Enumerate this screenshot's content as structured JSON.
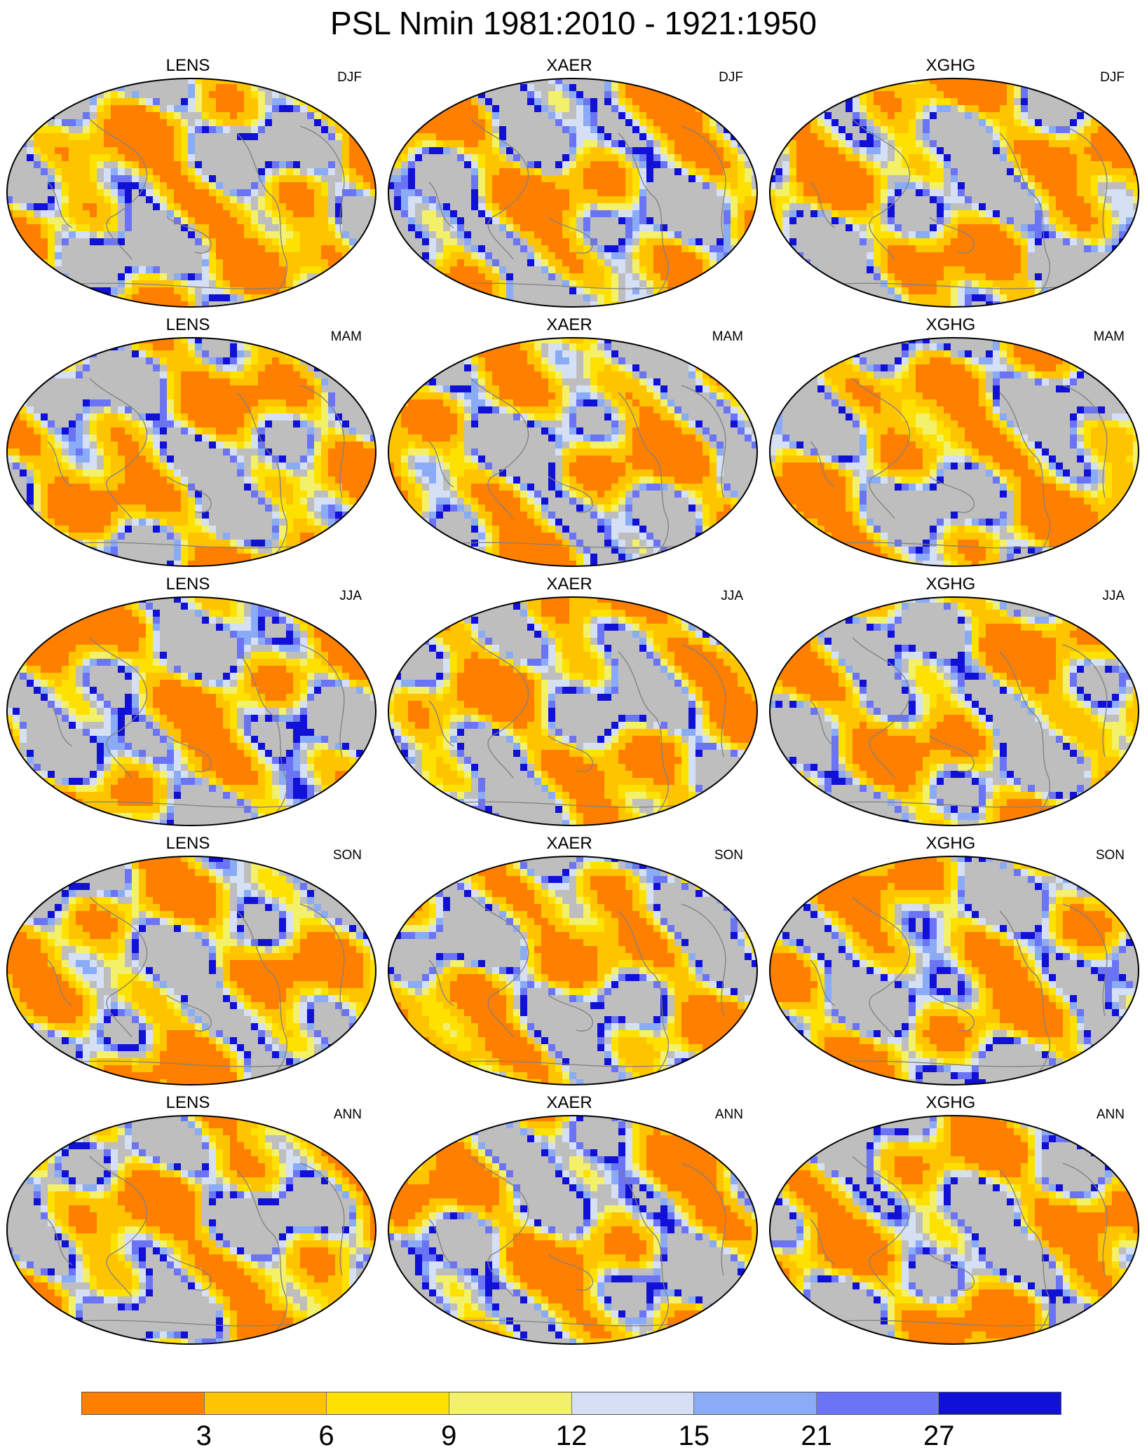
{
  "title": "PSL Nmin 1981:2010 - 1921:1950",
  "column_titles": [
    "LENS",
    "XAER",
    "XGHG"
  ],
  "row_seasons": [
    "DJF",
    "MAM",
    "JJA",
    "SON",
    "ANN"
  ],
  "colorbar": {
    "colors": [
      "#ff7f00",
      "#ffc400",
      "#ffe100",
      "#f3f06a",
      "#d6e0f5",
      "#8aabf5",
      "#6b74f5",
      "#1010d6"
    ],
    "labels": [
      "3",
      "6",
      "9",
      "12",
      "15",
      "21",
      "27"
    ]
  },
  "map_colors": {
    "ocean_gray": "#bebebe",
    "coast": "#808080",
    "outline": "#000000"
  }
}
